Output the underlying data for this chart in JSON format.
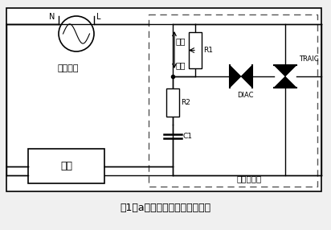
{
  "bg_color": "#f0f0f0",
  "line_color": "#000000",
  "fig_width": 4.12,
  "fig_height": 2.86,
  "dpi": 100,
  "labels": {
    "N": "N",
    "L": "L",
    "ac_input": "交流输入",
    "bright": "明亮",
    "dim": "昏暗",
    "R1": "R1",
    "R2": "R2",
    "C1": "C1",
    "DIAC": "DIAC",
    "TRIAC": "TRAIC",
    "load": "负载",
    "scr_dim": "可控硅调光",
    "caption": "图1（a）所示为可控硅调光示意"
  }
}
